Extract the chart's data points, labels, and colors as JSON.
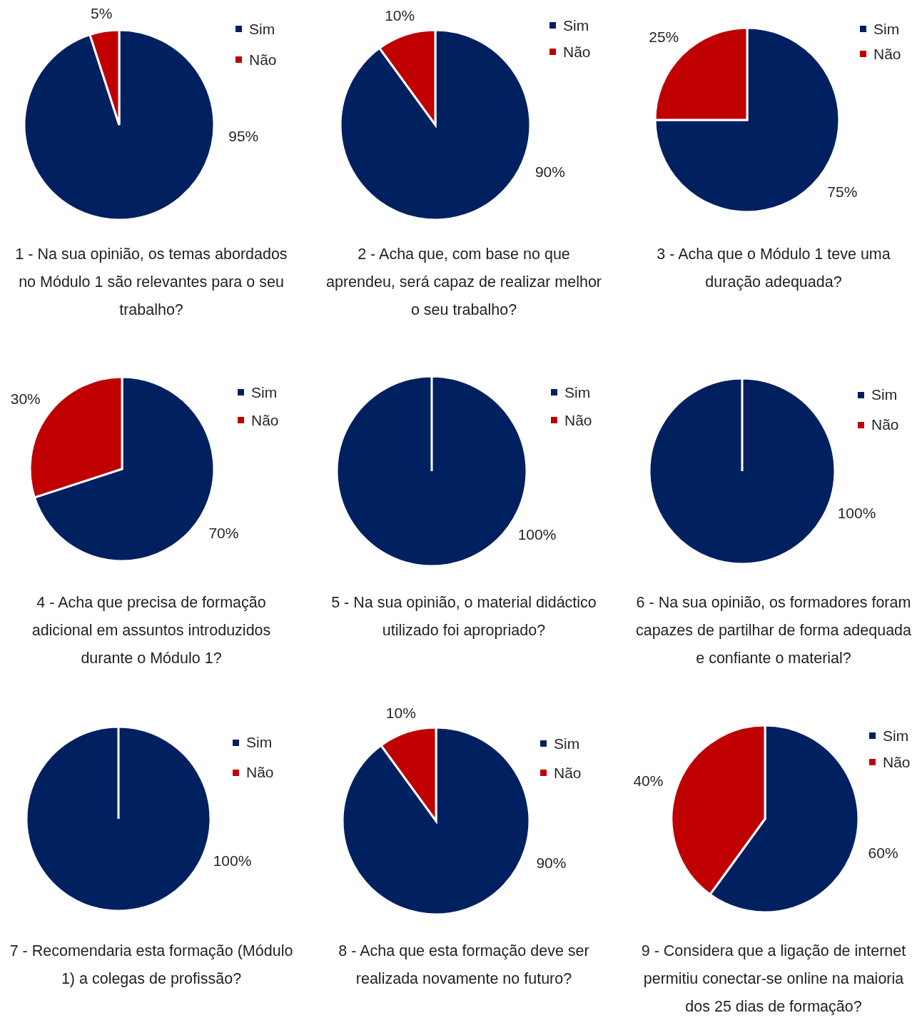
{
  "chart_data": [
    {
      "type": "pie",
      "title": "1 - Na sua opinião, os temas abordados no Módulo 1 são relevantes para o seu trabalho?",
      "categories": [
        "Sim",
        "Não"
      ],
      "values": [
        95,
        5
      ],
      "colors": [
        "#002060",
        "#c00000"
      ],
      "value_labels": [
        "95%",
        "5%"
      ],
      "legend": "top right"
    },
    {
      "type": "pie",
      "title": "2 - Acha que, com base no que aprendeu, será capaz de realizar melhor o seu trabalho?",
      "categories": [
        "Sim",
        "Não"
      ],
      "values": [
        90,
        10
      ],
      "colors": [
        "#002060",
        "#c00000"
      ],
      "value_labels": [
        "90%",
        "10%"
      ],
      "legend": "top right"
    },
    {
      "type": "pie",
      "title": "3 - Acha que o Módulo 1 teve uma duração adequada?",
      "categories": [
        "Sim",
        "Não"
      ],
      "values": [
        75,
        25
      ],
      "colors": [
        "#002060",
        "#c00000"
      ],
      "value_labels": [
        "75%",
        "25%"
      ],
      "legend": "top right"
    },
    {
      "type": "pie",
      "title": "4 - Acha que precisa de formação adicional em assuntos introduzidos durante o Módulo 1?",
      "categories": [
        "Sim",
        "Não"
      ],
      "values": [
        70,
        30
      ],
      "colors": [
        "#002060",
        "#c00000"
      ],
      "value_labels": [
        "70%",
        "30%"
      ],
      "legend": "top right"
    },
    {
      "type": "pie",
      "title": "5 - Na sua opinião, o material didáctico utilizado foi apropriado?",
      "categories": [
        "Sim",
        "Não"
      ],
      "values": [
        100,
        0
      ],
      "colors": [
        "#002060",
        "#c00000"
      ],
      "value_labels": [
        "100%",
        null
      ],
      "legend": "top right"
    },
    {
      "type": "pie",
      "title": "6 - Na sua opinião, os formadores foram capazes de partilhar de forma adequada e confiante o material?",
      "categories": [
        "Sim",
        "Não"
      ],
      "values": [
        100,
        0
      ],
      "colors": [
        "#002060",
        "#c00000"
      ],
      "value_labels": [
        "100%",
        null
      ],
      "legend": "top right"
    },
    {
      "type": "pie",
      "title": "7 - Recomendaria esta formação (Módulo 1) a colegas de profissão?",
      "categories": [
        "Sim",
        "Não"
      ],
      "values": [
        100,
        0
      ],
      "colors": [
        "#002060",
        "#c00000"
      ],
      "value_labels": [
        "100%",
        null
      ],
      "legend": "top right"
    },
    {
      "type": "pie",
      "title": "8 - Acha que esta formação deve ser realizada novamente no futuro?",
      "categories": [
        "Sim",
        "Não"
      ],
      "values": [
        90,
        10
      ],
      "colors": [
        "#002060",
        "#c00000"
      ],
      "value_labels": [
        "90%",
        "10%"
      ],
      "legend": "top right"
    },
    {
      "type": "pie",
      "title": "9 - Considera que a ligação de internet permitiu conectar-se online na maioria dos 25 dias de formação?",
      "categories": [
        "Sim",
        "Não"
      ],
      "values": [
        60,
        40
      ],
      "colors": [
        "#002060",
        "#c00000"
      ],
      "value_labels": [
        "60%",
        "40%"
      ],
      "legend": "top right"
    }
  ]
}
